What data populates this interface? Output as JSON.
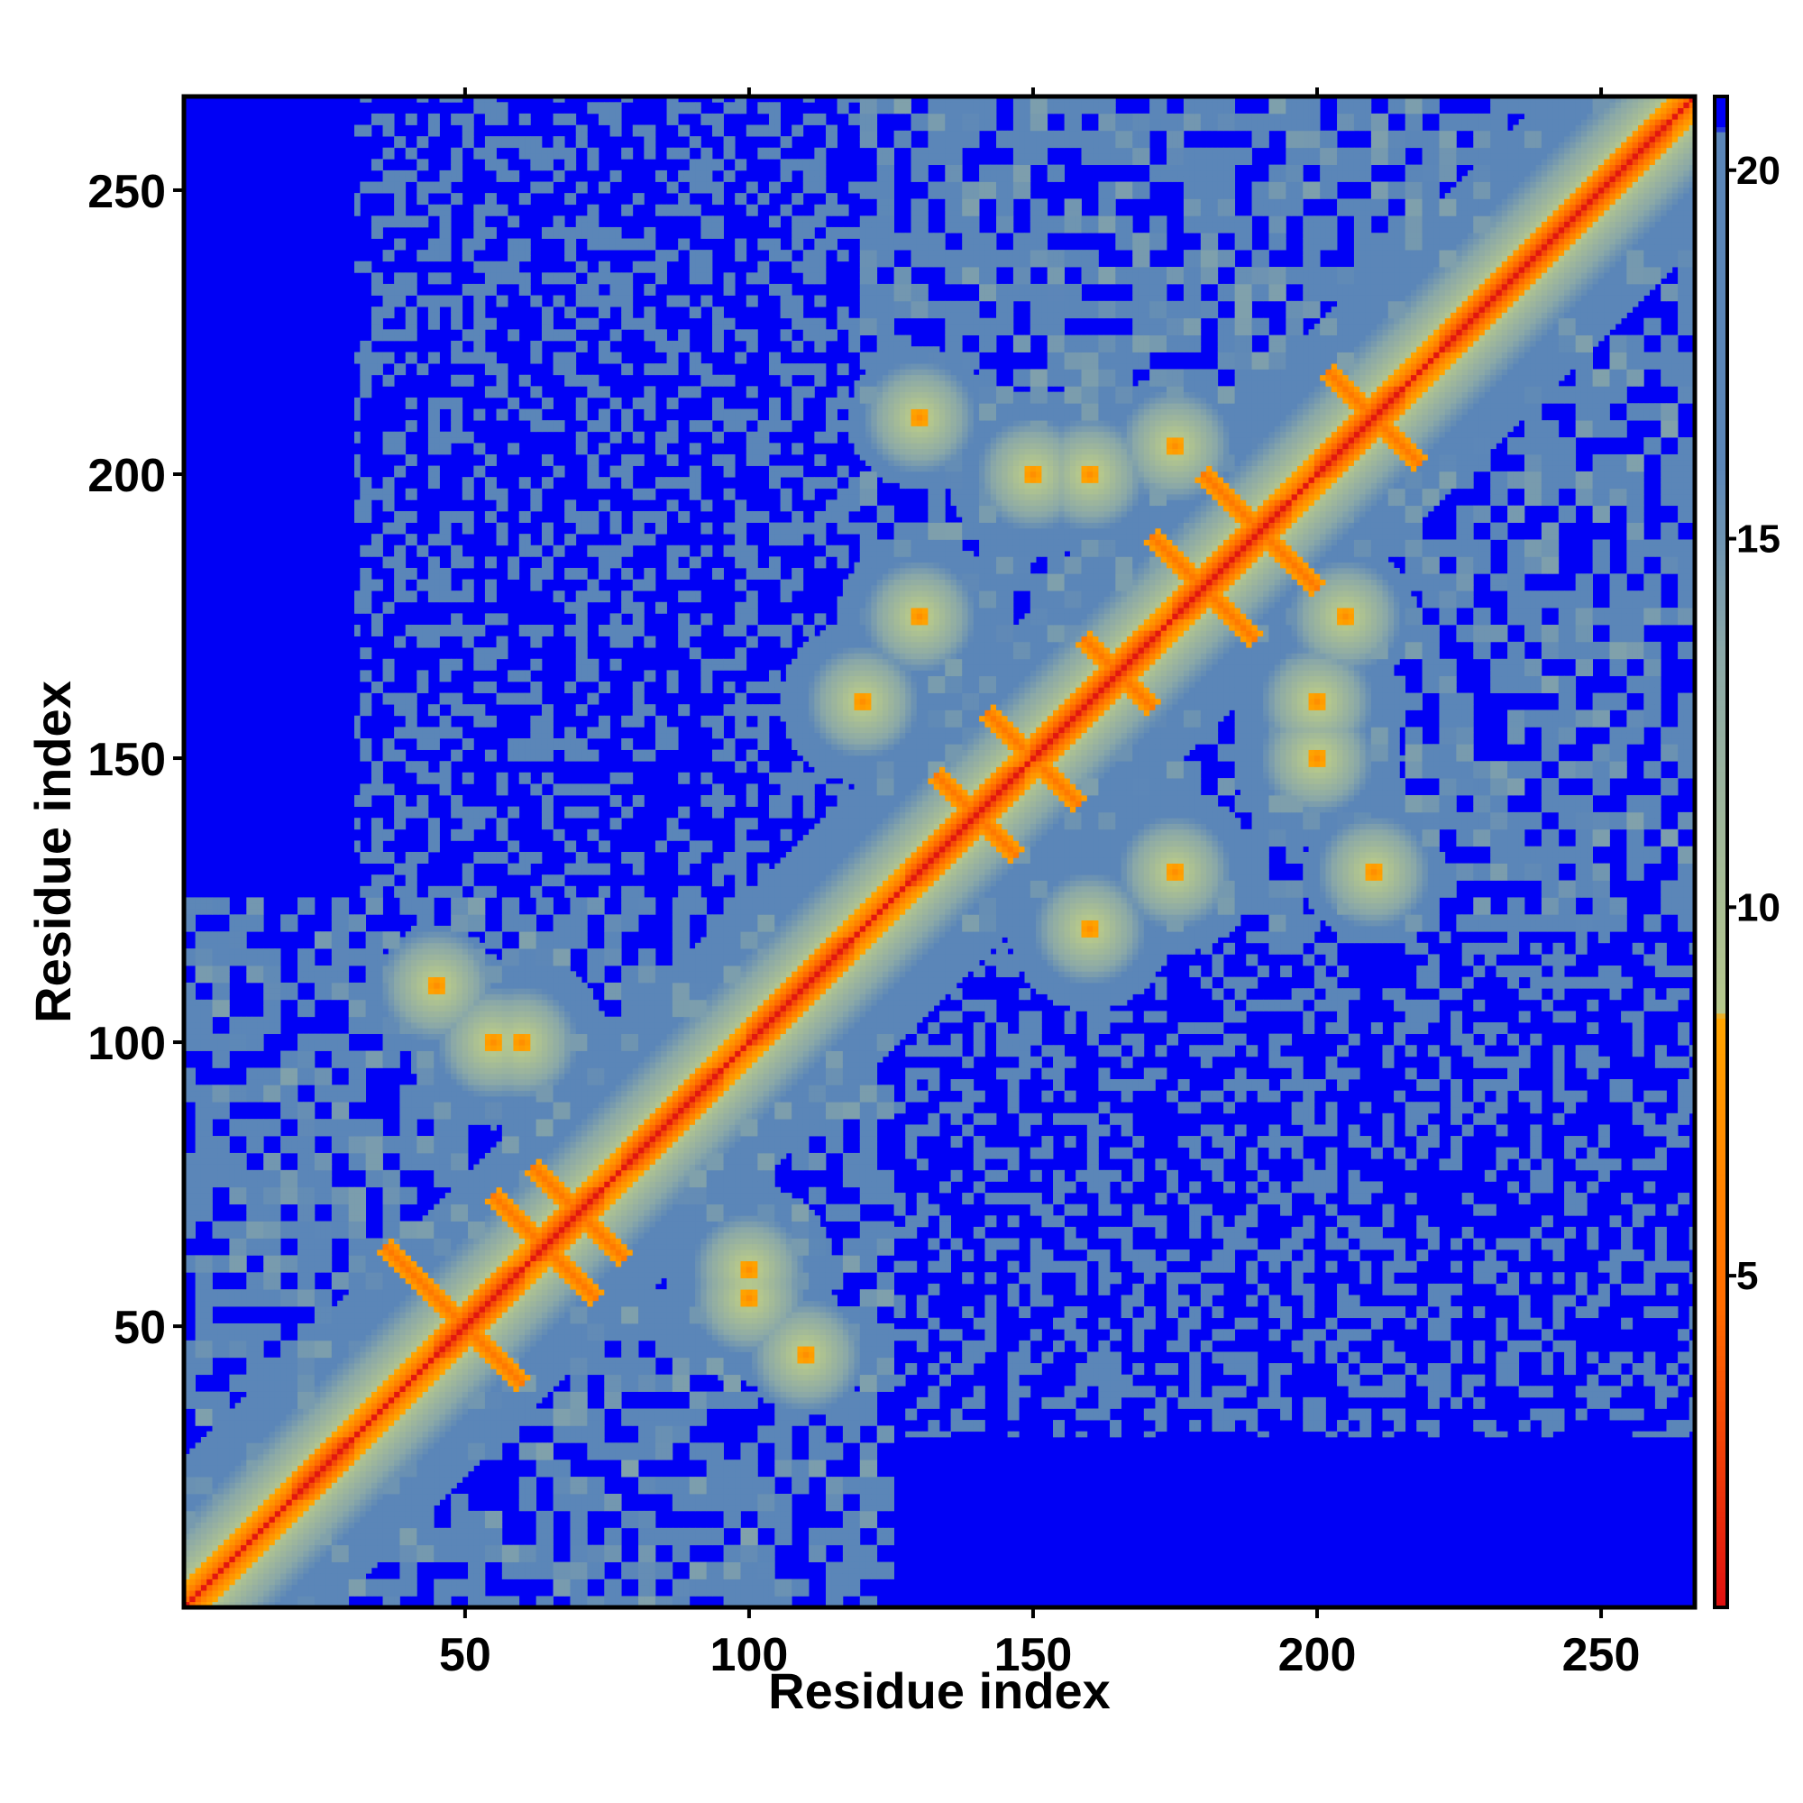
{
  "chart_data": {
    "type": "heatmap",
    "title": "",
    "xlabel": "Residue index",
    "ylabel": "Residue index",
    "n_residues": 266,
    "xlim": [
      1,
      266
    ],
    "ylim": [
      1,
      266
    ],
    "x_ticks": [
      50,
      100,
      150,
      200,
      250
    ],
    "y_ticks": [
      50,
      100,
      150,
      200,
      250
    ],
    "colorbar": {
      "ticks": [
        5,
        10,
        15,
        20
      ],
      "range": [
        0.5,
        21
      ],
      "stops": [
        {
          "value": 0.5,
          "color": "#e01010"
        },
        {
          "value": 4.5,
          "color": "#ff6a00"
        },
        {
          "value": 8.5,
          "color": "#ffa500"
        },
        {
          "value": 8.6,
          "color": "#b6c88c"
        },
        {
          "value": 13.5,
          "color": "#8aa8a8"
        },
        {
          "value": 16.0,
          "color": "#5b86b8"
        },
        {
          "value": 20.5,
          "color": "#5b86b8"
        },
        {
          "value": 20.6,
          "color": "#0000f5"
        }
      ]
    },
    "domains": [
      [
        1,
        125
      ],
      [
        120,
        266
      ]
    ],
    "helix_blocks": [
      [
        20,
        30
      ],
      [
        45,
        60
      ],
      [
        62,
        74
      ],
      [
        78,
        95
      ],
      [
        100,
        118
      ],
      [
        128,
        148
      ],
      [
        150,
        172
      ],
      [
        175,
        195
      ],
      [
        200,
        215
      ],
      [
        222,
        262
      ]
    ],
    "antiparallel_contacts": [
      {
        "center": [
          48,
          52
        ],
        "half": 12
      },
      {
        "center": [
          64,
          64
        ],
        "half": 9
      },
      {
        "center": [
          70,
          70
        ],
        "half": 8
      },
      {
        "center": [
          190,
          190
        ],
        "half": 10
      },
      {
        "center": [
          180,
          180
        ],
        "half": 9
      },
      {
        "center": [
          210,
          210
        ],
        "half": 8
      },
      {
        "center": [
          150,
          150
        ],
        "half": 8
      },
      {
        "center": [
          140,
          140
        ],
        "half": 7
      },
      {
        "center": [
          165,
          165
        ],
        "half": 6
      }
    ],
    "off_diagonal_contacts": [
      {
        "x": 130,
        "y": 210,
        "r": 7
      },
      {
        "x": 160,
        "y": 200,
        "r": 8
      },
      {
        "x": 200,
        "y": 150,
        "r": 10
      },
      {
        "x": 205,
        "y": 175,
        "r": 7
      },
      {
        "x": 60,
        "y": 100,
        "r": 9
      },
      {
        "x": 100,
        "y": 55,
        "r": 10
      },
      {
        "x": 120,
        "y": 160,
        "r": 8
      },
      {
        "x": 175,
        "y": 130,
        "r": 8
      },
      {
        "x": 45,
        "y": 110,
        "r": 6
      },
      {
        "x": 210,
        "y": 130,
        "r": 7
      }
    ]
  }
}
